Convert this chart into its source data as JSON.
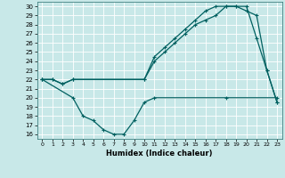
{
  "xlabel": "Humidex (Indice chaleur)",
  "ylabel": "",
  "bg_color": "#c8e8e8",
  "grid_color": "#ffffff",
  "line_color": "#006060",
  "xlim": [
    -0.5,
    23.5
  ],
  "ylim": [
    15.5,
    30.5
  ],
  "yticks": [
    16,
    17,
    18,
    19,
    20,
    21,
    22,
    23,
    24,
    25,
    26,
    27,
    28,
    29,
    30
  ],
  "xticks": [
    0,
    1,
    2,
    3,
    4,
    5,
    6,
    7,
    8,
    9,
    10,
    11,
    12,
    13,
    14,
    15,
    16,
    17,
    18,
    19,
    20,
    21,
    22,
    23
  ],
  "line1_x": [
    0,
    1,
    2,
    3,
    10,
    11,
    12,
    13,
    14,
    15,
    16,
    17,
    18,
    19,
    20,
    21,
    22,
    23
  ],
  "line1_y": [
    22,
    22,
    21.5,
    22,
    22,
    24,
    25,
    26,
    27,
    28,
    28.5,
    29,
    30,
    30,
    30,
    26.5,
    23,
    19.5
  ],
  "line2_x": [
    0,
    1,
    2,
    3,
    10,
    11,
    12,
    13,
    14,
    15,
    16,
    17,
    18,
    19,
    20,
    21,
    22,
    23
  ],
  "line2_y": [
    22,
    22,
    21.5,
    22,
    22,
    24.5,
    25.5,
    26.5,
    27.5,
    28.5,
    29.5,
    30,
    30,
    30,
    29.5,
    29,
    23,
    19.5
  ],
  "line3_x": [
    0,
    3,
    4,
    5,
    6,
    7,
    8,
    9,
    10,
    11,
    18,
    23
  ],
  "line3_y": [
    22,
    20,
    18,
    17.5,
    16.5,
    16,
    16,
    17.5,
    19.5,
    20,
    20,
    20
  ]
}
